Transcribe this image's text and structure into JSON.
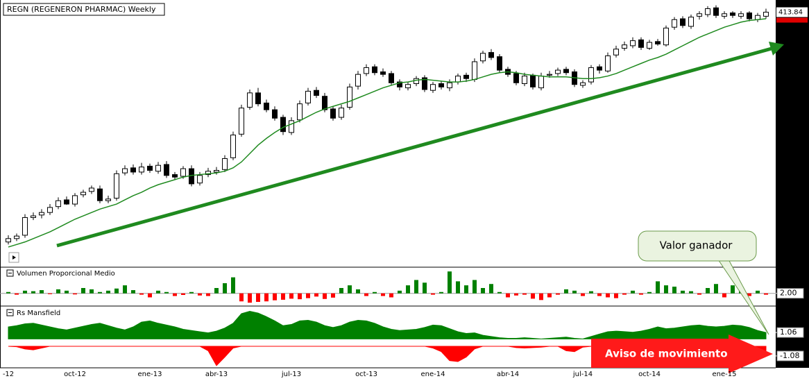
{
  "chart_data": [
    {
      "type": "candlestick",
      "title": "REGN (REGENERON PHARMAC) Weekly",
      "ylim": [
        130,
        425
      ],
      "categories": [
        "-12",
        null,
        null,
        null,
        null,
        null,
        null,
        null,
        "oct-12",
        null,
        null,
        null,
        null,
        null,
        null,
        null,
        null,
        "ene-13",
        null,
        null,
        null,
        null,
        null,
        null,
        null,
        "abr-13",
        null,
        null,
        null,
        null,
        null,
        null,
        null,
        null,
        "jul-13",
        null,
        null,
        null,
        null,
        null,
        null,
        null,
        null,
        "oct-13",
        null,
        null,
        null,
        null,
        null,
        null,
        null,
        "ene-14",
        null,
        null,
        null,
        null,
        null,
        null,
        null,
        null,
        "abr-14",
        null,
        null,
        null,
        null,
        null,
        null,
        null,
        null,
        "jul-14",
        null,
        null,
        null,
        null,
        null,
        null,
        null,
        "oct-14",
        null,
        null,
        null,
        null,
        null,
        null,
        null,
        null,
        "ene-15",
        null,
        null,
        null,
        null,
        null
      ],
      "open": [
        141,
        145,
        149,
        170,
        173,
        176,
        183,
        191,
        186,
        197,
        201,
        204,
        190,
        193,
        223,
        229,
        224,
        231,
        225,
        233,
        221,
        219,
        228,
        211,
        221,
        224,
        227,
        241,
        269,
        301,
        318,
        306,
        298,
        289,
        271,
        286,
        306,
        321,
        314,
        299,
        289,
        301,
        326,
        341,
        349,
        343,
        341,
        331,
        324,
        329,
        336,
        321,
        329,
        324,
        331,
        339,
        334,
        356,
        366,
        361,
        346,
        341,
        329,
        339,
        324,
        339,
        341,
        346,
        343,
        327,
        331,
        349,
        344,
        363,
        371,
        374,
        381,
        371,
        379,
        375,
        396,
        406,
        397,
        409,
        411,
        419,
        409,
        413,
        409,
        413,
        405,
        409
      ],
      "high": [
        149,
        151,
        174,
        176,
        180,
        186,
        194,
        195,
        199,
        203,
        208,
        208,
        196,
        226,
        232,
        233,
        235,
        234,
        236,
        237,
        224,
        231,
        232,
        224,
        229,
        230,
        244,
        272,
        304,
        322,
        324,
        310,
        302,
        292,
        289,
        309,
        324,
        325,
        318,
        302,
        304,
        329,
        344,
        352,
        352,
        347,
        344,
        334,
        331,
        338,
        339,
        331,
        332,
        334,
        341,
        342,
        359,
        368,
        370,
        364,
        349,
        344,
        342,
        341,
        342,
        344,
        348,
        349,
        346,
        333,
        351,
        352,
        366,
        374,
        379,
        384,
        384,
        381,
        382,
        398,
        408,
        409,
        411,
        415,
        421,
        422,
        415,
        415,
        415,
        415,
        413,
        418
      ],
      "low": [
        138,
        142,
        146,
        167,
        169,
        173,
        180,
        185,
        183,
        194,
        198,
        187,
        187,
        190,
        220,
        221,
        221,
        223,
        222,
        217,
        215,
        216,
        207,
        208,
        218,
        221,
        224,
        238,
        266,
        298,
        302,
        295,
        285,
        268,
        268,
        283,
        303,
        312,
        295,
        285,
        286,
        298,
        322,
        338,
        339,
        337,
        327,
        321,
        321,
        326,
        319,
        318,
        322,
        320,
        328,
        331,
        331,
        353,
        357,
        342,
        337,
        327,
        326,
        322,
        321,
        336,
        338,
        339,
        325,
        324,
        328,
        341,
        342,
        360,
        368,
        371,
        369,
        369,
        374,
        373,
        393,
        395,
        394,
        405,
        408,
        407,
        406,
        407,
        406,
        403,
        402,
        406
      ],
      "close": [
        145,
        148,
        170,
        172,
        176,
        182,
        190,
        186,
        196,
        200,
        205,
        190,
        192,
        222,
        228,
        224,
        230,
        226,
        232,
        220,
        218,
        228,
        210,
        220,
        225,
        226,
        240,
        268,
        300,
        318,
        305,
        298,
        288,
        272,
        285,
        305,
        320,
        315,
        298,
        288,
        300,
        325,
        340,
        348,
        342,
        340,
        330,
        325,
        328,
        335,
        322,
        328,
        325,
        330,
        338,
        335,
        355,
        365,
        360,
        345,
        340,
        330,
        338,
        325,
        338,
        340,
        345,
        342,
        328,
        330,
        348,
        345,
        362,
        370,
        375,
        380,
        372,
        378,
        376,
        395,
        405,
        398,
        408,
        412,
        418,
        410,
        412,
        410,
        412,
        406,
        410,
        413.84
      ],
      "ma": [
        135,
        138,
        141,
        145,
        149,
        153,
        158,
        163,
        168,
        172,
        176,
        180,
        183,
        186,
        191,
        196,
        200,
        205,
        209,
        212,
        215,
        218,
        220,
        221,
        222,
        223,
        225,
        229,
        236,
        246,
        256,
        264,
        271,
        277,
        281,
        285,
        290,
        295,
        299,
        302,
        305,
        308,
        312,
        316,
        320,
        324,
        327,
        330,
        331,
        333,
        334,
        333,
        332,
        331,
        331,
        332,
        334,
        337,
        340,
        342,
        343,
        342,
        340,
        339,
        338,
        337,
        337,
        337,
        336,
        335,
        335,
        336,
        338,
        341,
        345,
        349,
        353,
        357,
        360,
        364,
        369,
        374,
        379,
        384,
        388,
        392,
        396,
        399,
        402,
        404,
        405,
        406
      ],
      "up_color": "#ffffff",
      "down_color": "#000000",
      "ma_color": "#1f8a1f",
      "annotations": [
        "Valor ganador",
        "Aviso de movimiento"
      ]
    },
    {
      "type": "bar",
      "title": "Volumen Proporcional Medio",
      "ylim": [
        1.55,
        2.85
      ],
      "yticks": [
        {
          "value": 2,
          "label": "2.00"
        }
      ],
      "color": "#008000",
      "negative_color": "#ff0000",
      "values": [
        2.05,
        1.95,
        2.1,
        2.08,
        2.12,
        1.97,
        2.15,
        2.1,
        1.96,
        2.2,
        2.15,
        2.05,
        2.1,
        2.18,
        2.3,
        2.12,
        1.95,
        1.85,
        2.1,
        2.05,
        1.9,
        1.94,
        2.05,
        1.92,
        1.9,
        2.2,
        2.38,
        2.6,
        1.7,
        1.65,
        1.68,
        1.7,
        1.74,
        1.76,
        1.8,
        1.78,
        1.82,
        1.88,
        1.79,
        1.84,
        2.2,
        2.3,
        2.15,
        1.9,
        2.05,
        1.9,
        1.85,
        2.1,
        2.3,
        2.5,
        2.4,
        1.95,
        2.05,
        2.82,
        2.45,
        2.3,
        2.5,
        2.2,
        2.35,
        2.05,
        1.85,
        1.92,
        1.95,
        1.8,
        1.75,
        1.85,
        1.95,
        2.15,
        2.1,
        1.9,
        2.08,
        1.9,
        1.85,
        1.82,
        1.95,
        2.1,
        1.95,
        2.05,
        2.45,
        2.3,
        2.25,
        2.1,
        2.08,
        1.95,
        2.2,
        2.35,
        1.85,
        2.3,
        2.12,
        1.9,
        2.1,
        1.95
      ]
    },
    {
      "type": "area",
      "title": "Rs Mansfield",
      "ylim": [
        -1,
        5
      ],
      "yticks": [
        1.06
      ],
      "color": "#008000",
      "values": [
        2.0,
        2.2,
        2.5,
        2.6,
        2.3,
        2.0,
        1.7,
        1.5,
        1.8,
        2.1,
        2.4,
        2.6,
        2.2,
        1.8,
        1.5,
        2.0,
        2.8,
        3.0,
        2.6,
        2.3,
        2.0,
        1.6,
        1.4,
        1.2,
        1.0,
        1.3,
        1.8,
        2.6,
        4.2,
        4.6,
        4.3,
        3.7,
        3.0,
        2.2,
        2.4,
        3.0,
        3.1,
        2.8,
        2.2,
        1.9,
        2.2,
        2.8,
        3.1,
        3.0,
        2.6,
        2.0,
        1.6,
        1.4,
        1.5,
        1.6,
        1.9,
        2.3,
        2.2,
        1.7,
        1.2,
        0.9,
        1.0,
        0.6,
        0.4,
        0.2,
        0.1,
        0.1,
        0.2,
        0.1,
        0.0,
        0.1,
        0.2,
        0.3,
        0.1,
        0.0,
        0.4,
        0.8,
        1.2,
        1.3,
        1.2,
        1.1,
        1.3,
        1.6,
        2.0,
        1.7,
        1.8,
        2.0,
        2.2,
        2.3,
        2.1,
        2.0,
        2.1,
        2.3,
        2.2,
        1.9,
        1.4,
        1.06
      ]
    },
    {
      "type": "area",
      "ylim": [
        -2.4,
        0.15
      ],
      "yticks": [
        -1.08
      ],
      "color": "#ff0000",
      "values": [
        0,
        -0.05,
        -0.3,
        -0.4,
        -0.2,
        0,
        0,
        0,
        0,
        0,
        0,
        0,
        0,
        0,
        0,
        0,
        0,
        0,
        0,
        0,
        0,
        0,
        0,
        0,
        -0.5,
        -2.15,
        -1.2,
        -0.2,
        0,
        0,
        0,
        0,
        0,
        0,
        0,
        0,
        0,
        0,
        0,
        0,
        0,
        0,
        0,
        0,
        0,
        0,
        0,
        0,
        0,
        0,
        0,
        -0.2,
        -0.6,
        -1.6,
        -1.7,
        -1.2,
        -0.3,
        0,
        0,
        0,
        0,
        -0.15,
        -0.2,
        -0.15,
        -0.1,
        0,
        0,
        -0.5,
        -0.6,
        -0.1,
        0,
        0,
        0,
        0,
        0,
        0,
        0,
        0,
        0,
        0,
        0,
        0,
        0,
        0,
        0,
        0,
        0,
        0,
        0,
        0,
        -0.4,
        -1.08
      ]
    }
  ]
}
